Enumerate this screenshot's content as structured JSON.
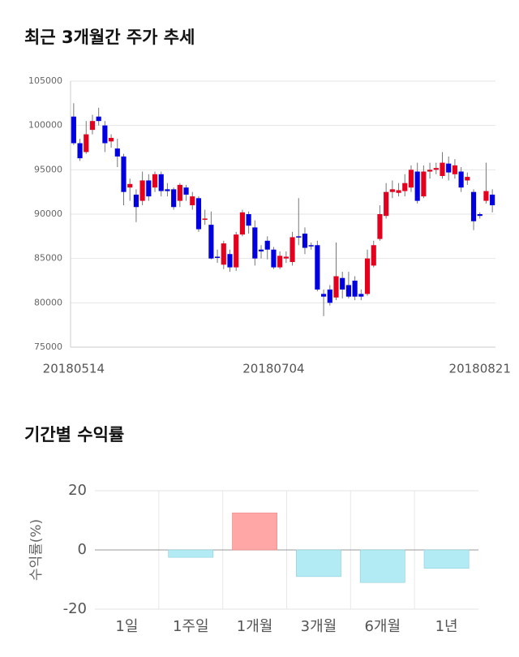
{
  "chart_data": [
    {
      "type": "candlestick",
      "title": "최근 3개월간 주가 추세",
      "categories": [
        "20180514",
        null,
        null,
        null,
        null,
        null,
        null,
        null,
        null,
        null,
        null,
        null,
        null,
        null,
        null,
        null,
        null,
        null,
        null,
        null,
        null,
        null,
        null,
        null,
        null,
        null,
        null,
        null,
        null,
        null,
        null,
        null,
        "20180704",
        null,
        null,
        null,
        null,
        null,
        null,
        null,
        null,
        null,
        null,
        null,
        null,
        null,
        null,
        null,
        null,
        null,
        null,
        null,
        null,
        null,
        null,
        null,
        null,
        null,
        null,
        null,
        null,
        null,
        null,
        null,
        null,
        "20180821",
        null,
        null
      ],
      "open": [
        101000,
        98000,
        97000,
        99500,
        101000,
        100000,
        98200,
        97400,
        96500,
        93000,
        92200,
        91500,
        93800,
        93000,
        94500,
        92800,
        92800,
        91500,
        93000,
        91000,
        91800,
        89400,
        88800,
        85200,
        84300,
        85500,
        84000,
        87700,
        90000,
        88500,
        86000,
        87000,
        86000,
        84000,
        85000,
        84600,
        87500,
        87800,
        86500,
        86500,
        81000,
        81500,
        80600,
        82800,
        82000,
        82500,
        81000,
        81000,
        84200,
        87200,
        89800,
        92500,
        92400,
        92600,
        93000,
        94800,
        92000,
        94800,
        95000,
        94300,
        95700,
        94500,
        94800,
        93800,
        92500,
        90000,
        91500,
        92200
      ],
      "high": [
        102500,
        98500,
        100500,
        101200,
        102000,
        100500,
        99000,
        98500,
        96800,
        94000,
        92800,
        94800,
        94500,
        94800,
        94800,
        93500,
        93000,
        93500,
        93300,
        92500,
        92000,
        90500,
        90300,
        86000,
        87000,
        86000,
        88000,
        90500,
        90300,
        89300,
        86500,
        87500,
        86300,
        85800,
        85800,
        88000,
        91800,
        88500,
        86800,
        87000,
        81500,
        82000,
        86800,
        83500,
        83500,
        83000,
        81500,
        86000,
        87000,
        91000,
        93500,
        93800,
        93500,
        94500,
        95500,
        95800,
        95500,
        95800,
        95800,
        97000,
        96500,
        96200,
        95300,
        94700,
        92800,
        90200,
        95800,
        92800
      ],
      "low": [
        97800,
        96000,
        96800,
        99000,
        100000,
        97000,
        97500,
        95300,
        91000,
        91500,
        89100,
        91000,
        91500,
        92500,
        92000,
        92000,
        90500,
        90800,
        91500,
        90500,
        88000,
        88800,
        84900,
        84500,
        83800,
        83500,
        83600,
        87500,
        87800,
        84200,
        85000,
        84900,
        83800,
        83800,
        84500,
        84200,
        86500,
        85500,
        86000,
        81300,
        78500,
        79700,
        80300,
        80500,
        80500,
        80300,
        80300,
        80800,
        84000,
        87000,
        89500,
        91800,
        92000,
        92000,
        92500,
        91200,
        91800,
        94000,
        94500,
        94000,
        93800,
        94000,
        92500,
        93300,
        88200,
        89500,
        91200,
        90200
      ],
      "close": [
        98000,
        96300,
        99000,
        100500,
        100500,
        98000,
        98600,
        96500,
        92500,
        93400,
        90800,
        93800,
        92000,
        94500,
        92600,
        92600,
        90800,
        93300,
        92200,
        92000,
        88300,
        89500,
        85000,
        85100,
        86700,
        84000,
        87700,
        90200,
        88700,
        85000,
        85800,
        86000,
        84000,
        85300,
        85200,
        87400,
        87400,
        86200,
        86400,
        81500,
        80700,
        80000,
        83000,
        81500,
        80700,
        80700,
        80700,
        85000,
        86500,
        90000,
        92500,
        92800,
        92700,
        93500,
        95000,
        91500,
        94800,
        95000,
        95200,
        95800,
        94700,
        95500,
        93000,
        94200,
        89200,
        89800,
        92600,
        91000
      ],
      "up_color": "#e5001e",
      "down_color": "#0000e0",
      "ylim": [
        75000,
        105000
      ],
      "yticks": [
        75000,
        80000,
        85000,
        90000,
        95000,
        100000,
        105000
      ],
      "grid": true
    },
    {
      "type": "bar",
      "title": "기간별 수익률",
      "y_label": "수익률(%)",
      "categories": [
        "1일",
        "1주일",
        "1개월",
        "3개월",
        "6개월",
        "1년"
      ],
      "values": [
        0,
        -2.5,
        12.5,
        -9,
        -11,
        -6.2
      ],
      "positive_color": "#ffa6a6",
      "negative_color": "#b2ebf4",
      "ylim": [
        -20,
        20
      ],
      "yticks": [
        -20,
        0,
        20
      ],
      "grid": true
    }
  ]
}
